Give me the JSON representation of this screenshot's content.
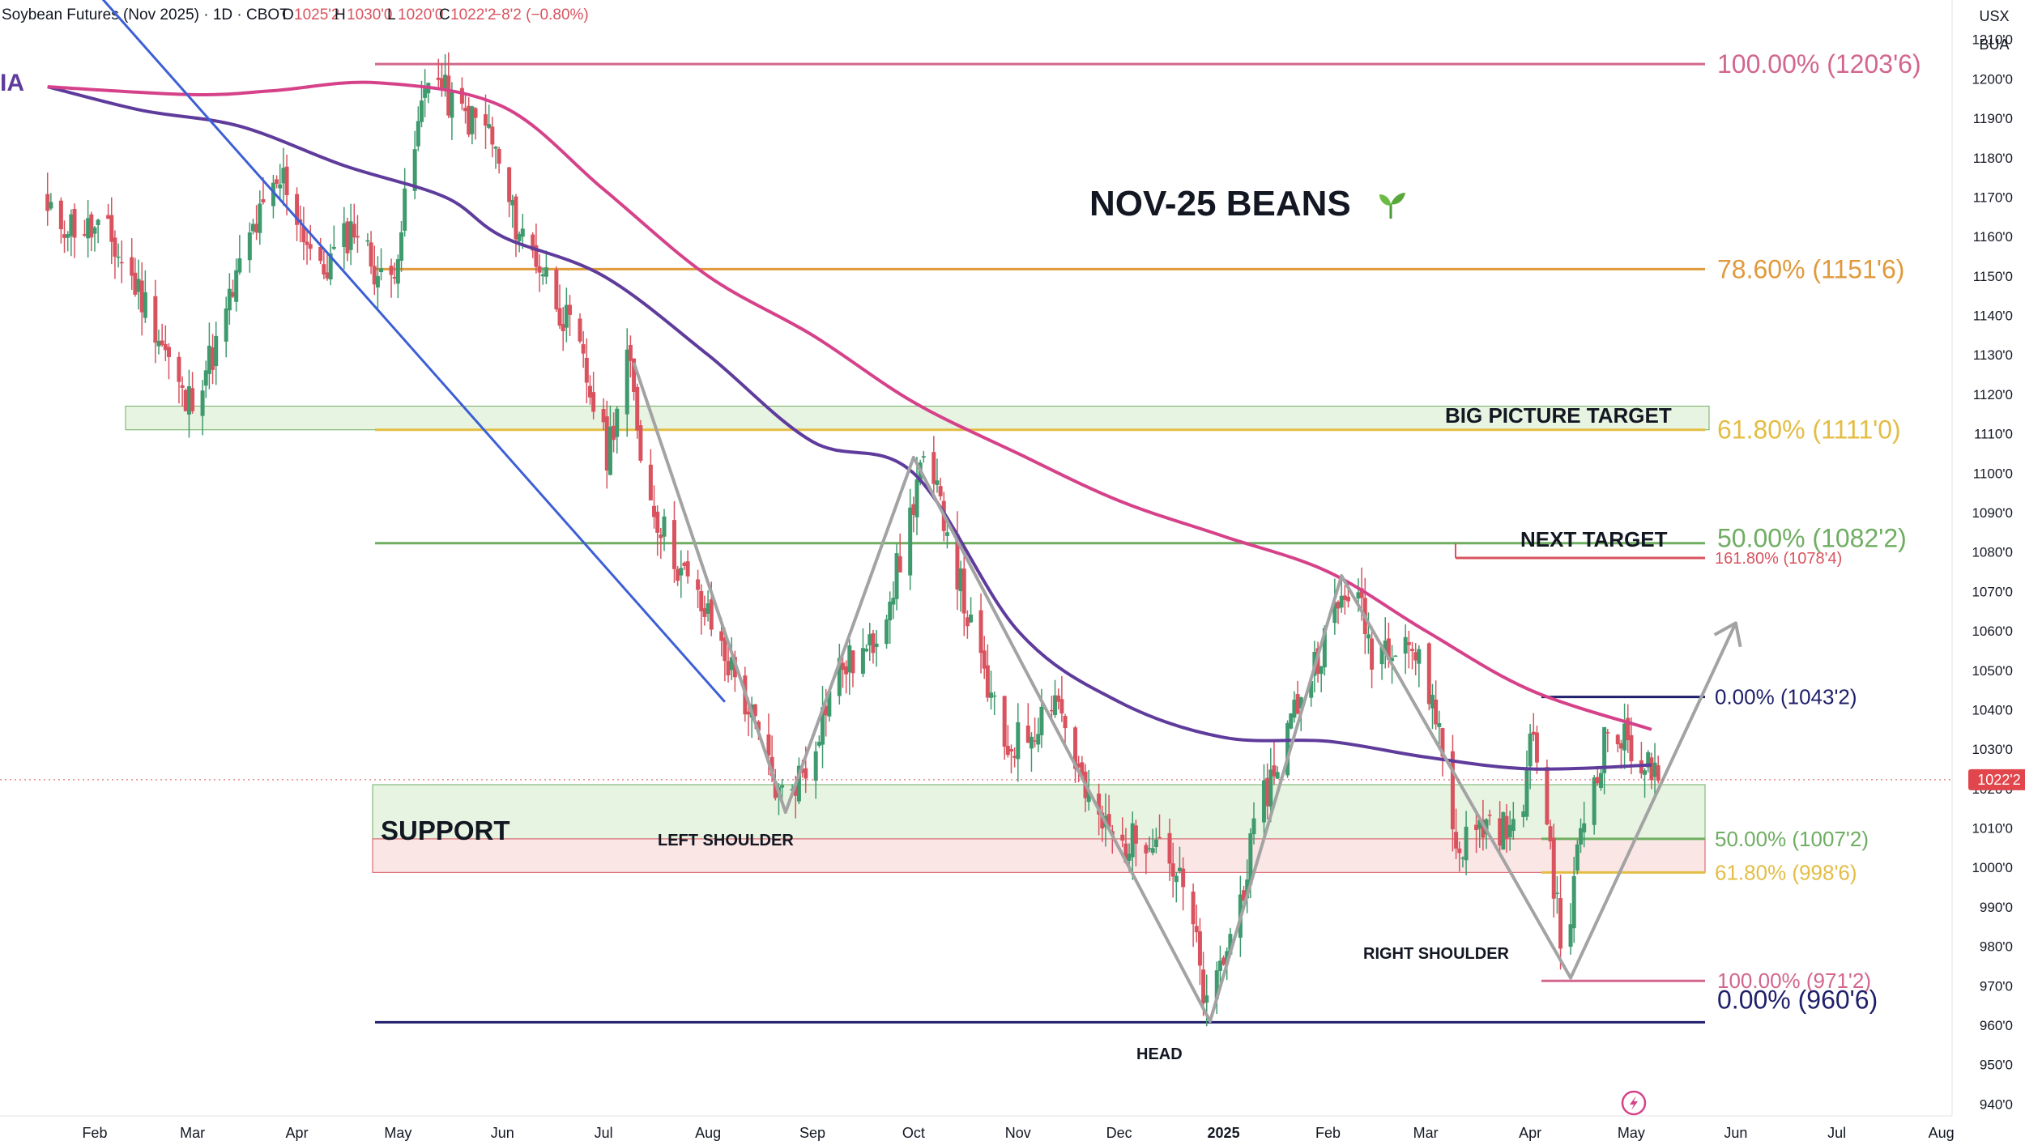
{
  "header": {
    "symbol": "Soybean Futures (Nov 2025) · 1D · CBOT",
    "o_label": "O",
    "o_value": "1025'2",
    "h_label": "H",
    "h_value": "1030'0",
    "l_label": "L",
    "l_value": "1020'0",
    "c_label": "C",
    "c_value": "1022'2",
    "change": "−8'2 (−0.80%)",
    "fragment": "IA",
    "currency": "USX",
    "unit": "BUA",
    "price_badge": "1022'2"
  },
  "colors": {
    "up": "#3f9a6e",
    "down": "#d9535f",
    "ma_pink": "#d6428a",
    "ma_purple": "#5f3c9c",
    "trendline_blue": "#3d5fd6",
    "pattern_gray": "#a3a3a3",
    "fib_100": "#d2668e",
    "fib_786": "#e09a3c",
    "fib_618": "#e3bd45",
    "fib_50": "#6fae62",
    "fib_0_navy": "#1f1f6b",
    "support_green_fill": "#e8f4e2",
    "support_red_fill": "#fbe6e6"
  },
  "chart_data": {
    "type": "candlestick",
    "title": "NOV-25 BEANS",
    "title_icon": "seedling-icon",
    "xlabel": "",
    "ylabel": "",
    "x_ticks": [
      "Feb",
      "Mar",
      "Apr",
      "May",
      "Jun",
      "Jul",
      "Aug",
      "Sep",
      "Oct",
      "Nov",
      "Dec",
      "2025",
      "Feb",
      "Mar",
      "Apr",
      "May",
      "Jun",
      "Jul",
      "Aug"
    ],
    "y_range": [
      937,
      1220
    ],
    "y_ticks": [
      940,
      950,
      960,
      970,
      980,
      990,
      1000,
      1010,
      1020,
      1030,
      1040,
      1050,
      1060,
      1070,
      1080,
      1090,
      1100,
      1110,
      1120,
      1130,
      1140,
      1150,
      1160,
      1170,
      1180,
      1190,
      1200,
      1210
    ],
    "y_tick_labels": [
      "940'0",
      "950'0",
      "960'0",
      "970'0",
      "980'0",
      "990'0",
      "1000'0",
      "1010'0",
      "1020'0",
      "1030'0",
      "1040'0",
      "1050'0",
      "1060'0",
      "1070'0",
      "1080'0",
      "1090'0",
      "1100'0",
      "1110'0",
      "1120'0",
      "1130'0",
      "1140'0",
      "1150'0",
      "1160'0",
      "1170'0",
      "1180'0",
      "1190'0",
      "1200'0",
      "1210'0"
    ],
    "last_price": 1022.25,
    "price_path": [
      {
        "date": "Jan 18",
        "price": 1165
      },
      {
        "date": "Feb 5",
        "price": 1160
      },
      {
        "date": "Feb 18",
        "price": 1140
      },
      {
        "date": "Feb 28",
        "price": 1117
      },
      {
        "date": "Mar 8",
        "price": 1132
      },
      {
        "date": "Mar 18",
        "price": 1160
      },
      {
        "date": "Mar 28",
        "price": 1175
      },
      {
        "date": "Apr 8",
        "price": 1150
      },
      {
        "date": "Apr 18",
        "price": 1163
      },
      {
        "date": "Apr 28",
        "price": 1145
      },
      {
        "date": "May 4",
        "price": 1172
      },
      {
        "date": "May 10",
        "price": 1203
      },
      {
        "date": "May 18",
        "price": 1192
      },
      {
        "date": "May 28",
        "price": 1187
      },
      {
        "date": "Jun 4",
        "price": 1165
      },
      {
        "date": "Jun 14",
        "price": 1150
      },
      {
        "date": "Jun 24",
        "price": 1130
      },
      {
        "date": "Jul 2",
        "price": 1105
      },
      {
        "date": "Jul 8",
        "price": 1130
      },
      {
        "date": "Jul 14",
        "price": 1095
      },
      {
        "date": "Jul 24",
        "price": 1075
      },
      {
        "date": "Aug 3",
        "price": 1060
      },
      {
        "date": "Aug 13",
        "price": 1040
      },
      {
        "date": "Aug 22",
        "price": 1018
      },
      {
        "date": "Aug 30",
        "price": 1025
      },
      {
        "date": "Sep 8",
        "price": 1050
      },
      {
        "date": "Sep 18",
        "price": 1055
      },
      {
        "date": "Sep 28",
        "price": 1080
      },
      {
        "date": "Oct 3",
        "price": 1102
      },
      {
        "date": "Oct 10",
        "price": 1090
      },
      {
        "date": "Oct 18",
        "price": 1060
      },
      {
        "date": "Oct 28",
        "price": 1030
      },
      {
        "date": "Nov 5",
        "price": 1035
      },
      {
        "date": "Nov 12",
        "price": 1045
      },
      {
        "date": "Nov 22",
        "price": 1015
      },
      {
        "date": "Dec 2",
        "price": 1005
      },
      {
        "date": "Dec 12",
        "price": 1010
      },
      {
        "date": "Dec 22",
        "price": 990
      },
      {
        "date": "Dec 27",
        "price": 963
      },
      {
        "date": "Jan 4",
        "price": 985
      },
      {
        "date": "Jan 12",
        "price": 1015
      },
      {
        "date": "Jan 22",
        "price": 1040
      },
      {
        "date": "Feb 2",
        "price": 1062
      },
      {
        "date": "Feb 8",
        "price": 1073
      },
      {
        "date": "Feb 14",
        "price": 1055
      },
      {
        "date": "Feb 24",
        "price": 1060
      },
      {
        "date": "Mar 4",
        "price": 1040
      },
      {
        "date": "Mar 10",
        "price": 1005
      },
      {
        "date": "Mar 20",
        "price": 1012
      },
      {
        "date": "Mar 28",
        "price": 1008
      },
      {
        "date": "Apr 2",
        "price": 1035
      },
      {
        "date": "Apr 7",
        "price": 1005
      },
      {
        "date": "Apr 11",
        "price": 973
      },
      {
        "date": "Apr 16",
        "price": 1010
      },
      {
        "date": "Apr 24",
        "price": 1035
      },
      {
        "date": "May 2",
        "price": 1030
      },
      {
        "date": "May 9",
        "price": 1022
      }
    ],
    "moving_average_pink": [
      {
        "date": "Jan 18",
        "price": 1198
      },
      {
        "date": "Mar 1",
        "price": 1196
      },
      {
        "date": "Mar 25",
        "price": 1197
      },
      {
        "date": "Apr 25",
        "price": 1199
      },
      {
        "date": "Jun 1",
        "price": 1193
      },
      {
        "date": "Jul 1",
        "price": 1172
      },
      {
        "date": "Aug 1",
        "price": 1150
      },
      {
        "date": "Sep 1",
        "price": 1135
      },
      {
        "date": "Oct 1",
        "price": 1118
      },
      {
        "date": "Nov 1",
        "price": 1105
      },
      {
        "date": "Dec 1",
        "price": 1093
      },
      {
        "date": "Jan 1",
        "price": 1084
      },
      {
        "date": "Feb 1",
        "price": 1075
      },
      {
        "date": "Mar 1",
        "price": 1060
      },
      {
        "date": "Apr 1",
        "price": 1045
      },
      {
        "date": "May 7",
        "price": 1035
      }
    ],
    "moving_average_purple": [
      {
        "date": "Jan 18",
        "price": 1198
      },
      {
        "date": "Feb 15",
        "price": 1192
      },
      {
        "date": "Mar 15",
        "price": 1188
      },
      {
        "date": "Apr 15",
        "price": 1178
      },
      {
        "date": "May 15",
        "price": 1170
      },
      {
        "date": "Jun 1",
        "price": 1160
      },
      {
        "date": "Jul 1",
        "price": 1150
      },
      {
        "date": "Aug 1",
        "price": 1130
      },
      {
        "date": "Sep 1",
        "price": 1108
      },
      {
        "date": "Oct 1",
        "price": 1100
      },
      {
        "date": "Nov 1",
        "price": 1060
      },
      {
        "date": "Dec 1",
        "price": 1042
      },
      {
        "date": "Jan 1",
        "price": 1033
      },
      {
        "date": "Feb 1",
        "price": 1032
      },
      {
        "date": "Mar 1",
        "price": 1028
      },
      {
        "date": "Apr 1",
        "price": 1025
      },
      {
        "date": "May 7",
        "price": 1026
      }
    ],
    "trendline": [
      {
        "date": "Jan 18",
        "price": 1236
      },
      {
        "date": "Aug 6",
        "price": 1042
      }
    ],
    "pattern_path": [
      {
        "date": "Jul 10",
        "price": 1128
      },
      {
        "date": "Aug 24",
        "price": 1014
      },
      {
        "date": "Oct 1",
        "price": 1104
      },
      {
        "date": "Dec 28",
        "price": 961
      },
      {
        "date": "Feb 5",
        "price": 1074
      },
      {
        "date": "Apr 13",
        "price": 972
      },
      {
        "date": "Jun 1",
        "price": 1062
      }
    ],
    "fib_levels": [
      {
        "label": "100.00% (1203'6)",
        "price": 1203.75,
        "color": "#d2668e"
      },
      {
        "label": "78.60% (1151'6)",
        "price": 1151.75,
        "color": "#e09a3c"
      },
      {
        "label": "61.80% (1111'0)",
        "price": 1111.0,
        "color": "#e3bd45"
      },
      {
        "label": "50.00% (1082'2)",
        "price": 1082.25,
        "color": "#6fae62"
      },
      {
        "label": "161.80% (1078'4)",
        "price": 1078.5,
        "color": "#d9535f"
      },
      {
        "label": "0.00% (1043'2)",
        "price": 1043.25,
        "color": "#1f1f6b"
      },
      {
        "label": "50.00% (1007'2)",
        "price": 1007.25,
        "color": "#6fae62"
      },
      {
        "label": "61.80% (998'6)",
        "price": 998.75,
        "color": "#e3bd45"
      },
      {
        "label": "100.00% (971'2)",
        "price": 971.25,
        "color": "#d2668e"
      },
      {
        "label": "0.00% (960'6)",
        "price": 960.75,
        "color": "#1f1f6b"
      }
    ],
    "zones": [
      {
        "name": "support-upper",
        "low": 1007.25,
        "high": 1021
      },
      {
        "name": "support-lower",
        "low": 998.75,
        "high": 1007.25
      },
      {
        "name": "target-zone",
        "low": 1111,
        "high": 1117
      }
    ],
    "annotations": {
      "support": "SUPPORT",
      "left_shoulder": "LEFT SHOULDER",
      "head": "HEAD",
      "right_shoulder": "RIGHT SHOULDER",
      "next_target": "NEXT TARGET",
      "big_picture_target": "BIG PICTURE TARGET"
    },
    "grid": false,
    "legend": "none"
  }
}
